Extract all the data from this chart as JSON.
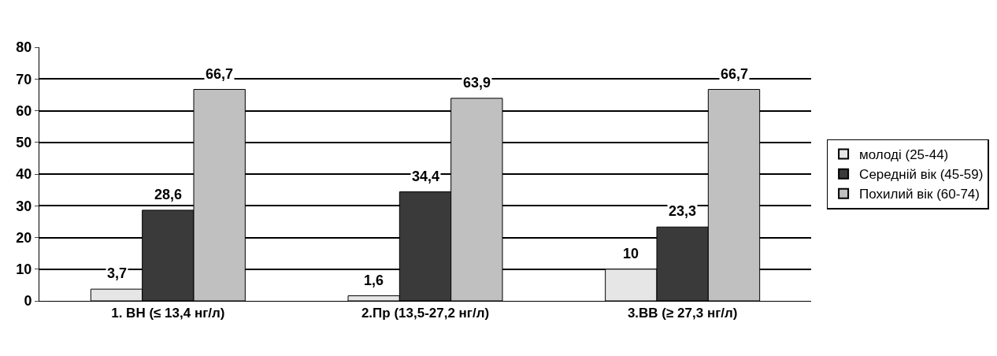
{
  "chart_data": {
    "type": "bar",
    "categories": [
      "1. ВН (≤ 13,4 нг/л)",
      "2.Пр (13,5-27,2 нг/л)",
      "3.ВВ (≥ 27,3 нг/л)"
    ],
    "series": [
      {
        "name": "молоді (25-44)",
        "color": "#e6e6e6",
        "values": [
          3.7,
          1.6,
          10
        ],
        "value_labels": [
          "3,7",
          "1,6",
          "10"
        ]
      },
      {
        "name": "Середній вік (45-59)",
        "color": "#3a3a3a",
        "values": [
          28.6,
          34.4,
          23.3
        ],
        "value_labels": [
          "28,6",
          "34,4",
          "23,3"
        ]
      },
      {
        "name": "Похилий вік (60-74)",
        "color": "#c0c0c0",
        "values": [
          66.7,
          63.9,
          66.7
        ],
        "value_labels": [
          "66,7",
          "63,9",
          "66,7"
        ]
      }
    ],
    "ylim": [
      0,
      80
    ],
    "yticks": [
      0,
      10,
      20,
      30,
      40,
      50,
      60,
      70,
      80
    ],
    "grid": "y",
    "legend": "right"
  }
}
